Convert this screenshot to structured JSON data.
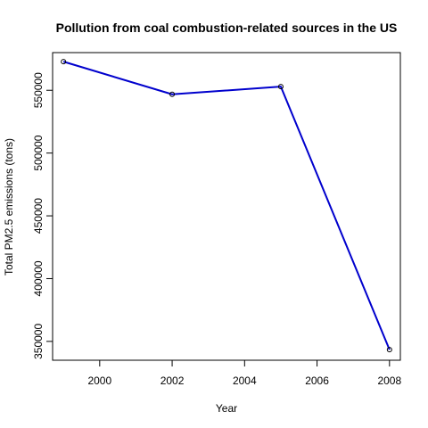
{
  "chart_data": {
    "type": "line",
    "title": "Pollution from coal combustion-related sources in the US",
    "xlabel": "Year",
    "ylabel": "Total PM2.5 emissions (tons)",
    "x": [
      1999,
      2002,
      2005,
      2008
    ],
    "series": [
      {
        "values": [
          572800,
          546800,
          552900,
          343400
        ]
      }
    ],
    "xlim": [
      1998.7,
      2008.3
    ],
    "ylim": [
      335000,
      580000
    ],
    "x_ticks": [
      2000,
      2002,
      2004,
      2006,
      2008
    ],
    "y_ticks": [
      350000,
      400000,
      450000,
      500000,
      550000
    ],
    "x_tick_labels": [
      "2000",
      "2002",
      "2004",
      "2006",
      "2008"
    ],
    "y_tick_labels": [
      "350000",
      "400000",
      "450000",
      "500000",
      "550000"
    ],
    "grid": false,
    "legend": "none",
    "line_color": "#0000CD",
    "marker": "open-circle"
  }
}
